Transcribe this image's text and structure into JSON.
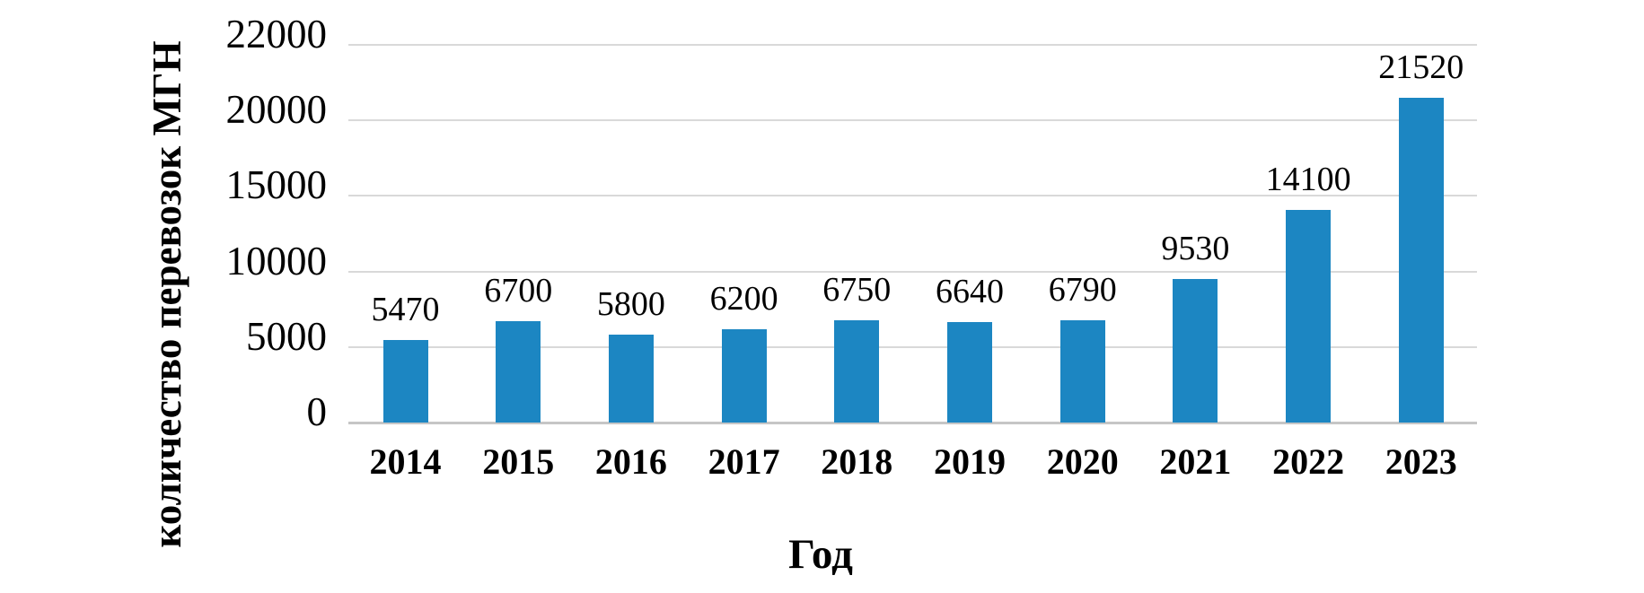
{
  "figure": {
    "background": "#ffffff"
  },
  "chart_data": {
    "type": "bar",
    "title": "",
    "xlabel": "Год",
    "ylabel": "количество перевозок МГН",
    "categories": [
      "2014",
      "2015",
      "2016",
      "2017",
      "2018",
      "2019",
      "2020",
      "2021",
      "2022",
      "2023"
    ],
    "values": [
      5470,
      6700,
      5800,
      6200,
      6750,
      6640,
      6790,
      9530,
      14100,
      21520
    ],
    "bar_labels": [
      "5470",
      "6700",
      "5800",
      "6200",
      "6750",
      "6640",
      "6790",
      "9530",
      "14100",
      "21520"
    ],
    "y_tick_labels": [
      "0",
      "5000",
      "10000",
      "15000",
      "20000",
      "22000"
    ],
    "ylim": [
      0,
      25000
    ],
    "grid": true,
    "legend_position": "none",
    "colors": {
      "bar": "#1c86c2",
      "gridline": "#d9d9d9",
      "axis_line": "#c6c6c6",
      "text": "#000000"
    }
  }
}
